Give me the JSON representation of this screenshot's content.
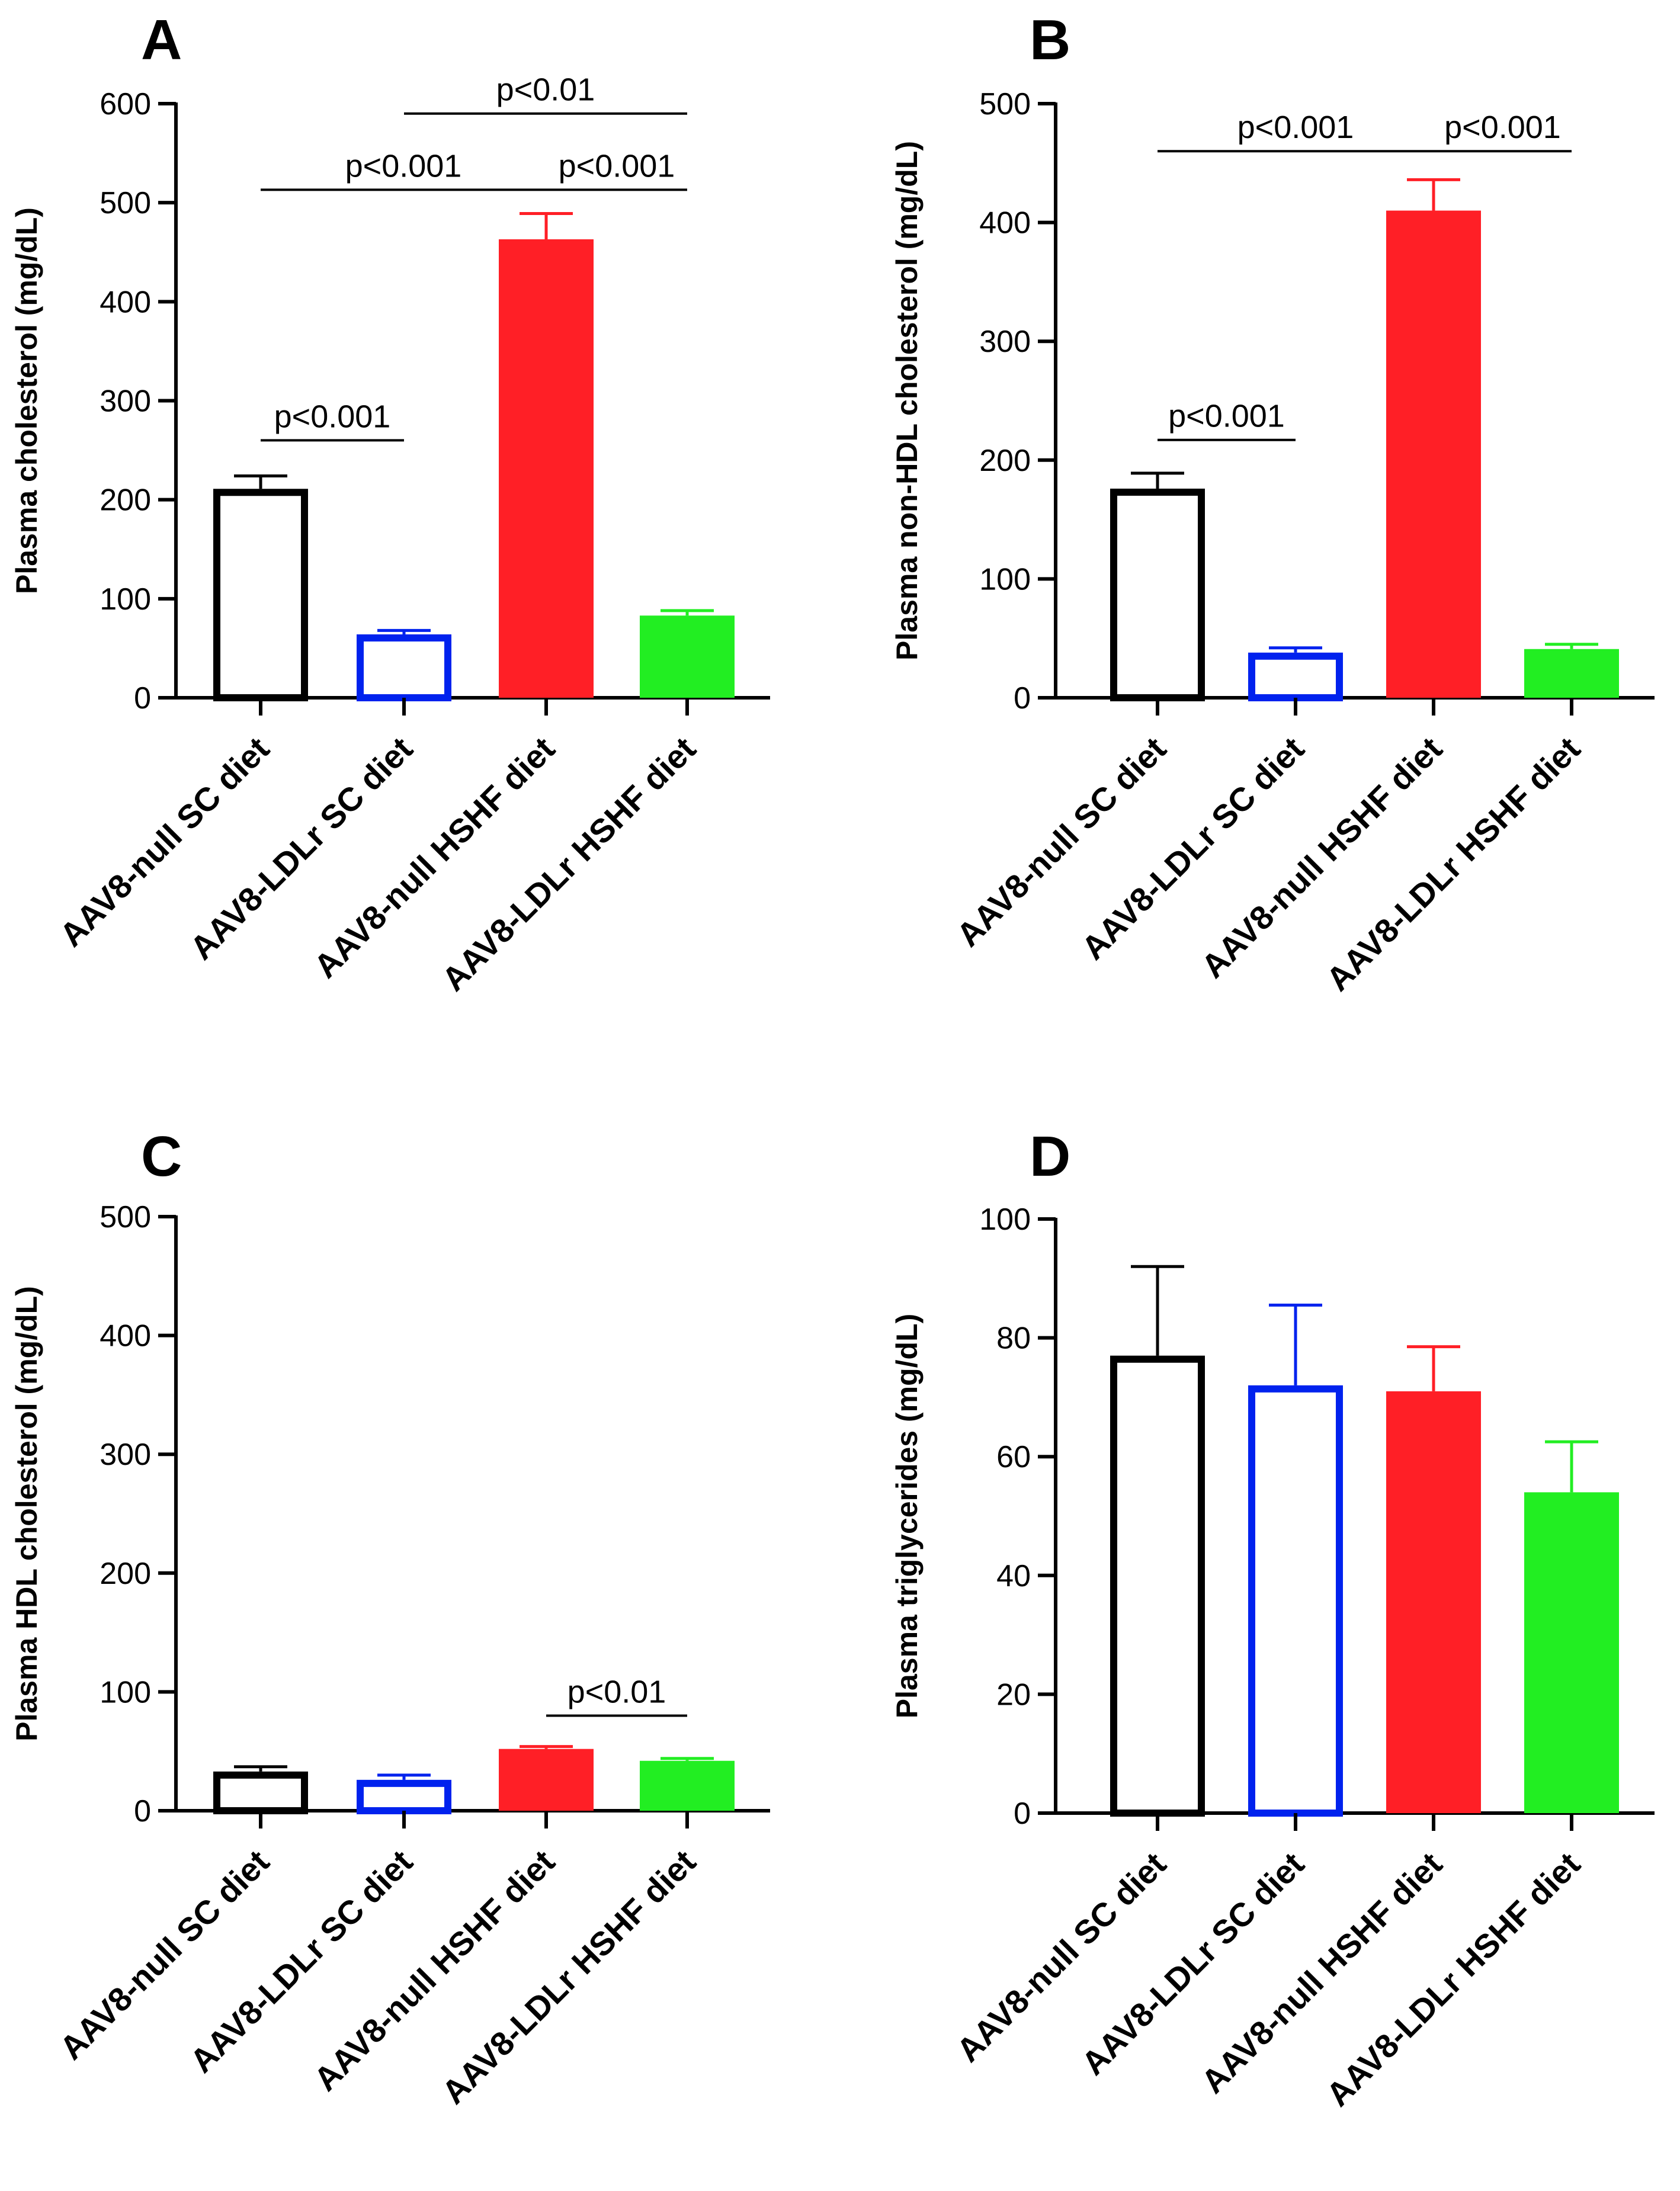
{
  "chart_data": [
    {
      "type": "bar",
      "panel": "A",
      "ylabel": "Plasma cholesterol (mg/dL)",
      "ylim": [
        0,
        600
      ],
      "yticks": [
        0,
        100,
        200,
        300,
        400,
        500,
        600
      ],
      "categories": [
        "AAV8-null SC diet",
        "AAV8-LDLr SC diet",
        "AAV8-null HSHF diet",
        "AAV8-LDLr HSHF diet"
      ],
      "values": [
        211,
        64,
        463,
        83
      ],
      "errors": [
        13,
        4,
        26,
        5
      ],
      "colors": [
        "#000000",
        "#0022ee",
        "#ff1f26",
        "#22ee22"
      ],
      "filled": [
        false,
        false,
        true,
        true
      ],
      "annotations": [
        {
          "text": "p<0.01",
          "from": 1,
          "to": 3,
          "y": 590
        },
        {
          "text": "p<0.001",
          "from": 0,
          "to": 2,
          "y": 513
        },
        {
          "text": "p<0.001",
          "from": 2,
          "to": 3,
          "y": 513
        },
        {
          "text": "p<0.001",
          "from": 0,
          "to": 1,
          "y": 260
        }
      ]
    },
    {
      "type": "bar",
      "panel": "B",
      "ylabel": "Plasma non-HDL cholesterol (mg/dL)",
      "ylim": [
        0,
        500
      ],
      "yticks": [
        0,
        100,
        200,
        300,
        400,
        500
      ],
      "categories": [
        "AAV8-null SC diet",
        "AAV8-LDLr SC diet",
        "AAV8-null HSHF diet",
        "AAV8-LDLr HSHF diet"
      ],
      "values": [
        176,
        38,
        410,
        41
      ],
      "errors": [
        13,
        4,
        26,
        4
      ],
      "colors": [
        "#000000",
        "#0022ee",
        "#ff1f26",
        "#22ee22"
      ],
      "filled": [
        false,
        false,
        true,
        true
      ],
      "annotations": [
        {
          "text": "p<0.001",
          "from": 0,
          "to": 2,
          "y": 460
        },
        {
          "text": "p<0.001",
          "from": 2,
          "to": 3,
          "y": 460
        },
        {
          "text": "p<0.001",
          "from": 0,
          "to": 1,
          "y": 217
        }
      ]
    },
    {
      "type": "bar",
      "panel": "C",
      "ylabel": "Plasma HDL cholesterol (mg/dL)",
      "ylim": [
        0,
        500
      ],
      "yticks": [
        0,
        100,
        200,
        300,
        400,
        500
      ],
      "categories": [
        "AAV8-null SC diet",
        "AAV8-LDLr SC diet",
        "AAV8-null HSHF diet",
        "AAV8-LDLr HSHF diet"
      ],
      "values": [
        33,
        26,
        52,
        42
      ],
      "errors": [
        4,
        4,
        2,
        2
      ],
      "colors": [
        "#000000",
        "#0022ee",
        "#ff1f26",
        "#22ee22"
      ],
      "filled": [
        false,
        false,
        true,
        true
      ],
      "annotations": [
        {
          "text": "p<0.01",
          "from": 2,
          "to": 3,
          "y": 80
        }
      ]
    },
    {
      "type": "bar",
      "panel": "D",
      "ylabel": "Plasma triglycerides (mg/dL)",
      "ylim": [
        0,
        100
      ],
      "yticks": [
        0,
        20,
        40,
        60,
        80,
        100
      ],
      "categories": [
        "AAV8-null SC diet",
        "AAV8-LDLr SC diet",
        "AAV8-null HSHF diet",
        "AAV8-LDLr HSHF diet"
      ],
      "values": [
        77,
        72,
        71,
        54
      ],
      "errors": [
        15,
        13.5,
        7.5,
        8.5
      ],
      "colors": [
        "#000000",
        "#0022ee",
        "#ff1f26",
        "#22ee22"
      ],
      "filled": [
        false,
        false,
        true,
        true
      ],
      "annotations": []
    }
  ]
}
